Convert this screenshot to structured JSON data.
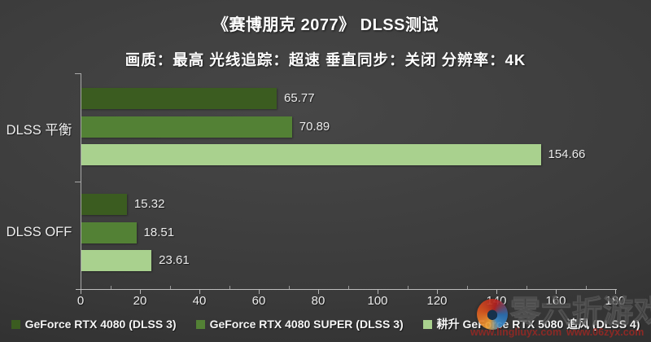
{
  "header": {
    "title": "《赛博朋克 2077》 DLSS测试",
    "subtitle": "画质：最高 光线追踪：超速 垂直同步：关闭  分辨率：4K"
  },
  "chart_data": {
    "type": "bar",
    "orientation": "horizontal",
    "title": "《赛博朋克 2077》 DLSS测试",
    "subtitle": "画质：最高 光线追踪：超速 垂直同步：关闭  分辨率：4K",
    "categories": [
      "DLSS 平衡",
      "DLSS  OFF"
    ],
    "series": [
      {
        "name": "GeForce RTX 4080 (DLSS 3)",
        "color": "#3b5c20",
        "values": [
          65.77,
          15.32
        ]
      },
      {
        "name": "GeForce RTX 4080 SUPER (DLSS 3)",
        "color": "#538135",
        "values": [
          70.89,
          18.51
        ]
      },
      {
        "name": "耕升 GeForce RTX 5080 追风 (DLSS  4)",
        "color": "#a9d18e",
        "values": [
          154.66,
          23.61
        ]
      }
    ],
    "xlabel": "",
    "ylabel": "",
    "xlim": [
      0,
      180
    ],
    "x_major_step": 20,
    "x_minor_step": 10,
    "x_ticks": [
      "0",
      "20",
      "40",
      "60",
      "80",
      "100",
      "120",
      "140",
      "160",
      "180"
    ],
    "grid": false,
    "legend_position": "bottom",
    "value_label_decimals": 2,
    "colors": {
      "background": "#3b3b3b",
      "axis": "#b5b5b5",
      "text": "#f2f2f2"
    }
  },
  "watermark": {
    "site_name": "零六折游戏",
    "url_left": "www.lingliuyx.com",
    "url_right": "www.06zyx.com"
  }
}
